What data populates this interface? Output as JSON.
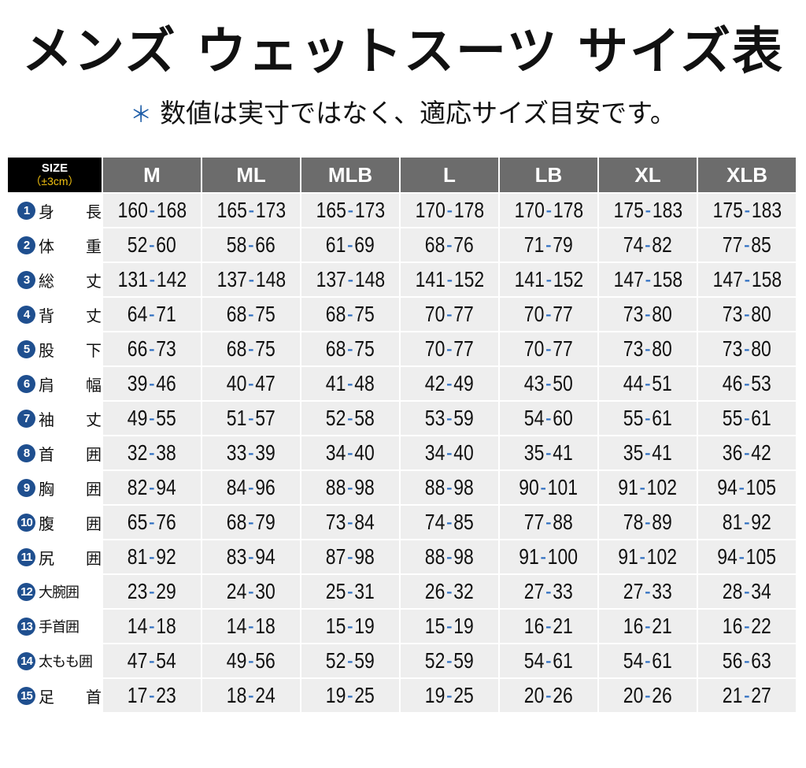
{
  "title": "メンズ ウェットスーツ サイズ表",
  "subtitle": {
    "marker": "＊",
    "text": "数値は実寸ではなく、適応サイズ目安です。"
  },
  "colors": {
    "header_dark": "#000000",
    "header_gray": "#6c6c6c",
    "accent_blue": "#1f4f8f",
    "separator_blue": "#2a6cc0",
    "tolerance_yellow": "#f0c010",
    "cell_bg": "#eeeeee"
  },
  "table": {
    "corner": {
      "line1": "SIZE",
      "line2": "（±3cm）"
    },
    "columns": [
      "M",
      "ML",
      "MLB",
      "L",
      "LB",
      "XL",
      "XLB"
    ],
    "rows": [
      {
        "num": "1",
        "label": "身長",
        "values": [
          [
            "160",
            "168"
          ],
          [
            "165",
            "173"
          ],
          [
            "165",
            "173"
          ],
          [
            "170",
            "178"
          ],
          [
            "170",
            "178"
          ],
          [
            "175",
            "183"
          ],
          [
            "175",
            "183"
          ]
        ]
      },
      {
        "num": "2",
        "label": "体重",
        "values": [
          [
            "52",
            "60"
          ],
          [
            "58",
            "66"
          ],
          [
            "61",
            "69"
          ],
          [
            "68",
            "76"
          ],
          [
            "71",
            "79"
          ],
          [
            "74",
            "82"
          ],
          [
            "77",
            "85"
          ]
        ]
      },
      {
        "num": "3",
        "label": "総丈",
        "values": [
          [
            "131",
            "142"
          ],
          [
            "137",
            "148"
          ],
          [
            "137",
            "148"
          ],
          [
            "141",
            "152"
          ],
          [
            "141",
            "152"
          ],
          [
            "147",
            "158"
          ],
          [
            "147",
            "158"
          ]
        ]
      },
      {
        "num": "4",
        "label": "背丈",
        "values": [
          [
            "64",
            "71"
          ],
          [
            "68",
            "75"
          ],
          [
            "68",
            "75"
          ],
          [
            "70",
            "77"
          ],
          [
            "70",
            "77"
          ],
          [
            "73",
            "80"
          ],
          [
            "73",
            "80"
          ]
        ]
      },
      {
        "num": "5",
        "label": "股下",
        "values": [
          [
            "66",
            "73"
          ],
          [
            "68",
            "75"
          ],
          [
            "68",
            "75"
          ],
          [
            "70",
            "77"
          ],
          [
            "70",
            "77"
          ],
          [
            "73",
            "80"
          ],
          [
            "73",
            "80"
          ]
        ]
      },
      {
        "num": "6",
        "label": "肩幅",
        "values": [
          [
            "39",
            "46"
          ],
          [
            "40",
            "47"
          ],
          [
            "41",
            "48"
          ],
          [
            "42",
            "49"
          ],
          [
            "43",
            "50"
          ],
          [
            "44",
            "51"
          ],
          [
            "46",
            "53"
          ]
        ]
      },
      {
        "num": "7",
        "label": "袖丈",
        "values": [
          [
            "49",
            "55"
          ],
          [
            "51",
            "57"
          ],
          [
            "52",
            "58"
          ],
          [
            "53",
            "59"
          ],
          [
            "54",
            "60"
          ],
          [
            "55",
            "61"
          ],
          [
            "55",
            "61"
          ]
        ]
      },
      {
        "num": "8",
        "label": "首囲",
        "values": [
          [
            "32",
            "38"
          ],
          [
            "33",
            "39"
          ],
          [
            "34",
            "40"
          ],
          [
            "34",
            "40"
          ],
          [
            "35",
            "41"
          ],
          [
            "35",
            "41"
          ],
          [
            "36",
            "42"
          ]
        ]
      },
      {
        "num": "9",
        "label": "胸囲",
        "values": [
          [
            "82",
            "94"
          ],
          [
            "84",
            "96"
          ],
          [
            "88",
            "98"
          ],
          [
            "88",
            "98"
          ],
          [
            "90",
            "101"
          ],
          [
            "91",
            "102"
          ],
          [
            "94",
            "105"
          ]
        ]
      },
      {
        "num": "10",
        "label": "腹囲",
        "values": [
          [
            "65",
            "76"
          ],
          [
            "68",
            "79"
          ],
          [
            "73",
            "84"
          ],
          [
            "74",
            "85"
          ],
          [
            "77",
            "88"
          ],
          [
            "78",
            "89"
          ],
          [
            "81",
            "92"
          ]
        ]
      },
      {
        "num": "11",
        "label": "尻囲",
        "values": [
          [
            "81",
            "92"
          ],
          [
            "83",
            "94"
          ],
          [
            "87",
            "98"
          ],
          [
            "88",
            "98"
          ],
          [
            "91",
            "100"
          ],
          [
            "91",
            "102"
          ],
          [
            "94",
            "105"
          ]
        ]
      },
      {
        "num": "12",
        "label": "大腕囲",
        "values": [
          [
            "23",
            "29"
          ],
          [
            "24",
            "30"
          ],
          [
            "25",
            "31"
          ],
          [
            "26",
            "32"
          ],
          [
            "27",
            "33"
          ],
          [
            "27",
            "33"
          ],
          [
            "28",
            "34"
          ]
        ]
      },
      {
        "num": "13",
        "label": "手首囲",
        "values": [
          [
            "14",
            "18"
          ],
          [
            "14",
            "18"
          ],
          [
            "15",
            "19"
          ],
          [
            "15",
            "19"
          ],
          [
            "16",
            "21"
          ],
          [
            "16",
            "21"
          ],
          [
            "16",
            "22"
          ]
        ]
      },
      {
        "num": "14",
        "label": "太もも囲",
        "values": [
          [
            "47",
            "54"
          ],
          [
            "49",
            "56"
          ],
          [
            "52",
            "59"
          ],
          [
            "52",
            "59"
          ],
          [
            "54",
            "61"
          ],
          [
            "54",
            "61"
          ],
          [
            "56",
            "63"
          ]
        ]
      },
      {
        "num": "15",
        "label": "足首",
        "values": [
          [
            "17",
            "23"
          ],
          [
            "18",
            "24"
          ],
          [
            "19",
            "25"
          ],
          [
            "19",
            "25"
          ],
          [
            "20",
            "26"
          ],
          [
            "20",
            "26"
          ],
          [
            "21",
            "27"
          ]
        ]
      }
    ]
  }
}
